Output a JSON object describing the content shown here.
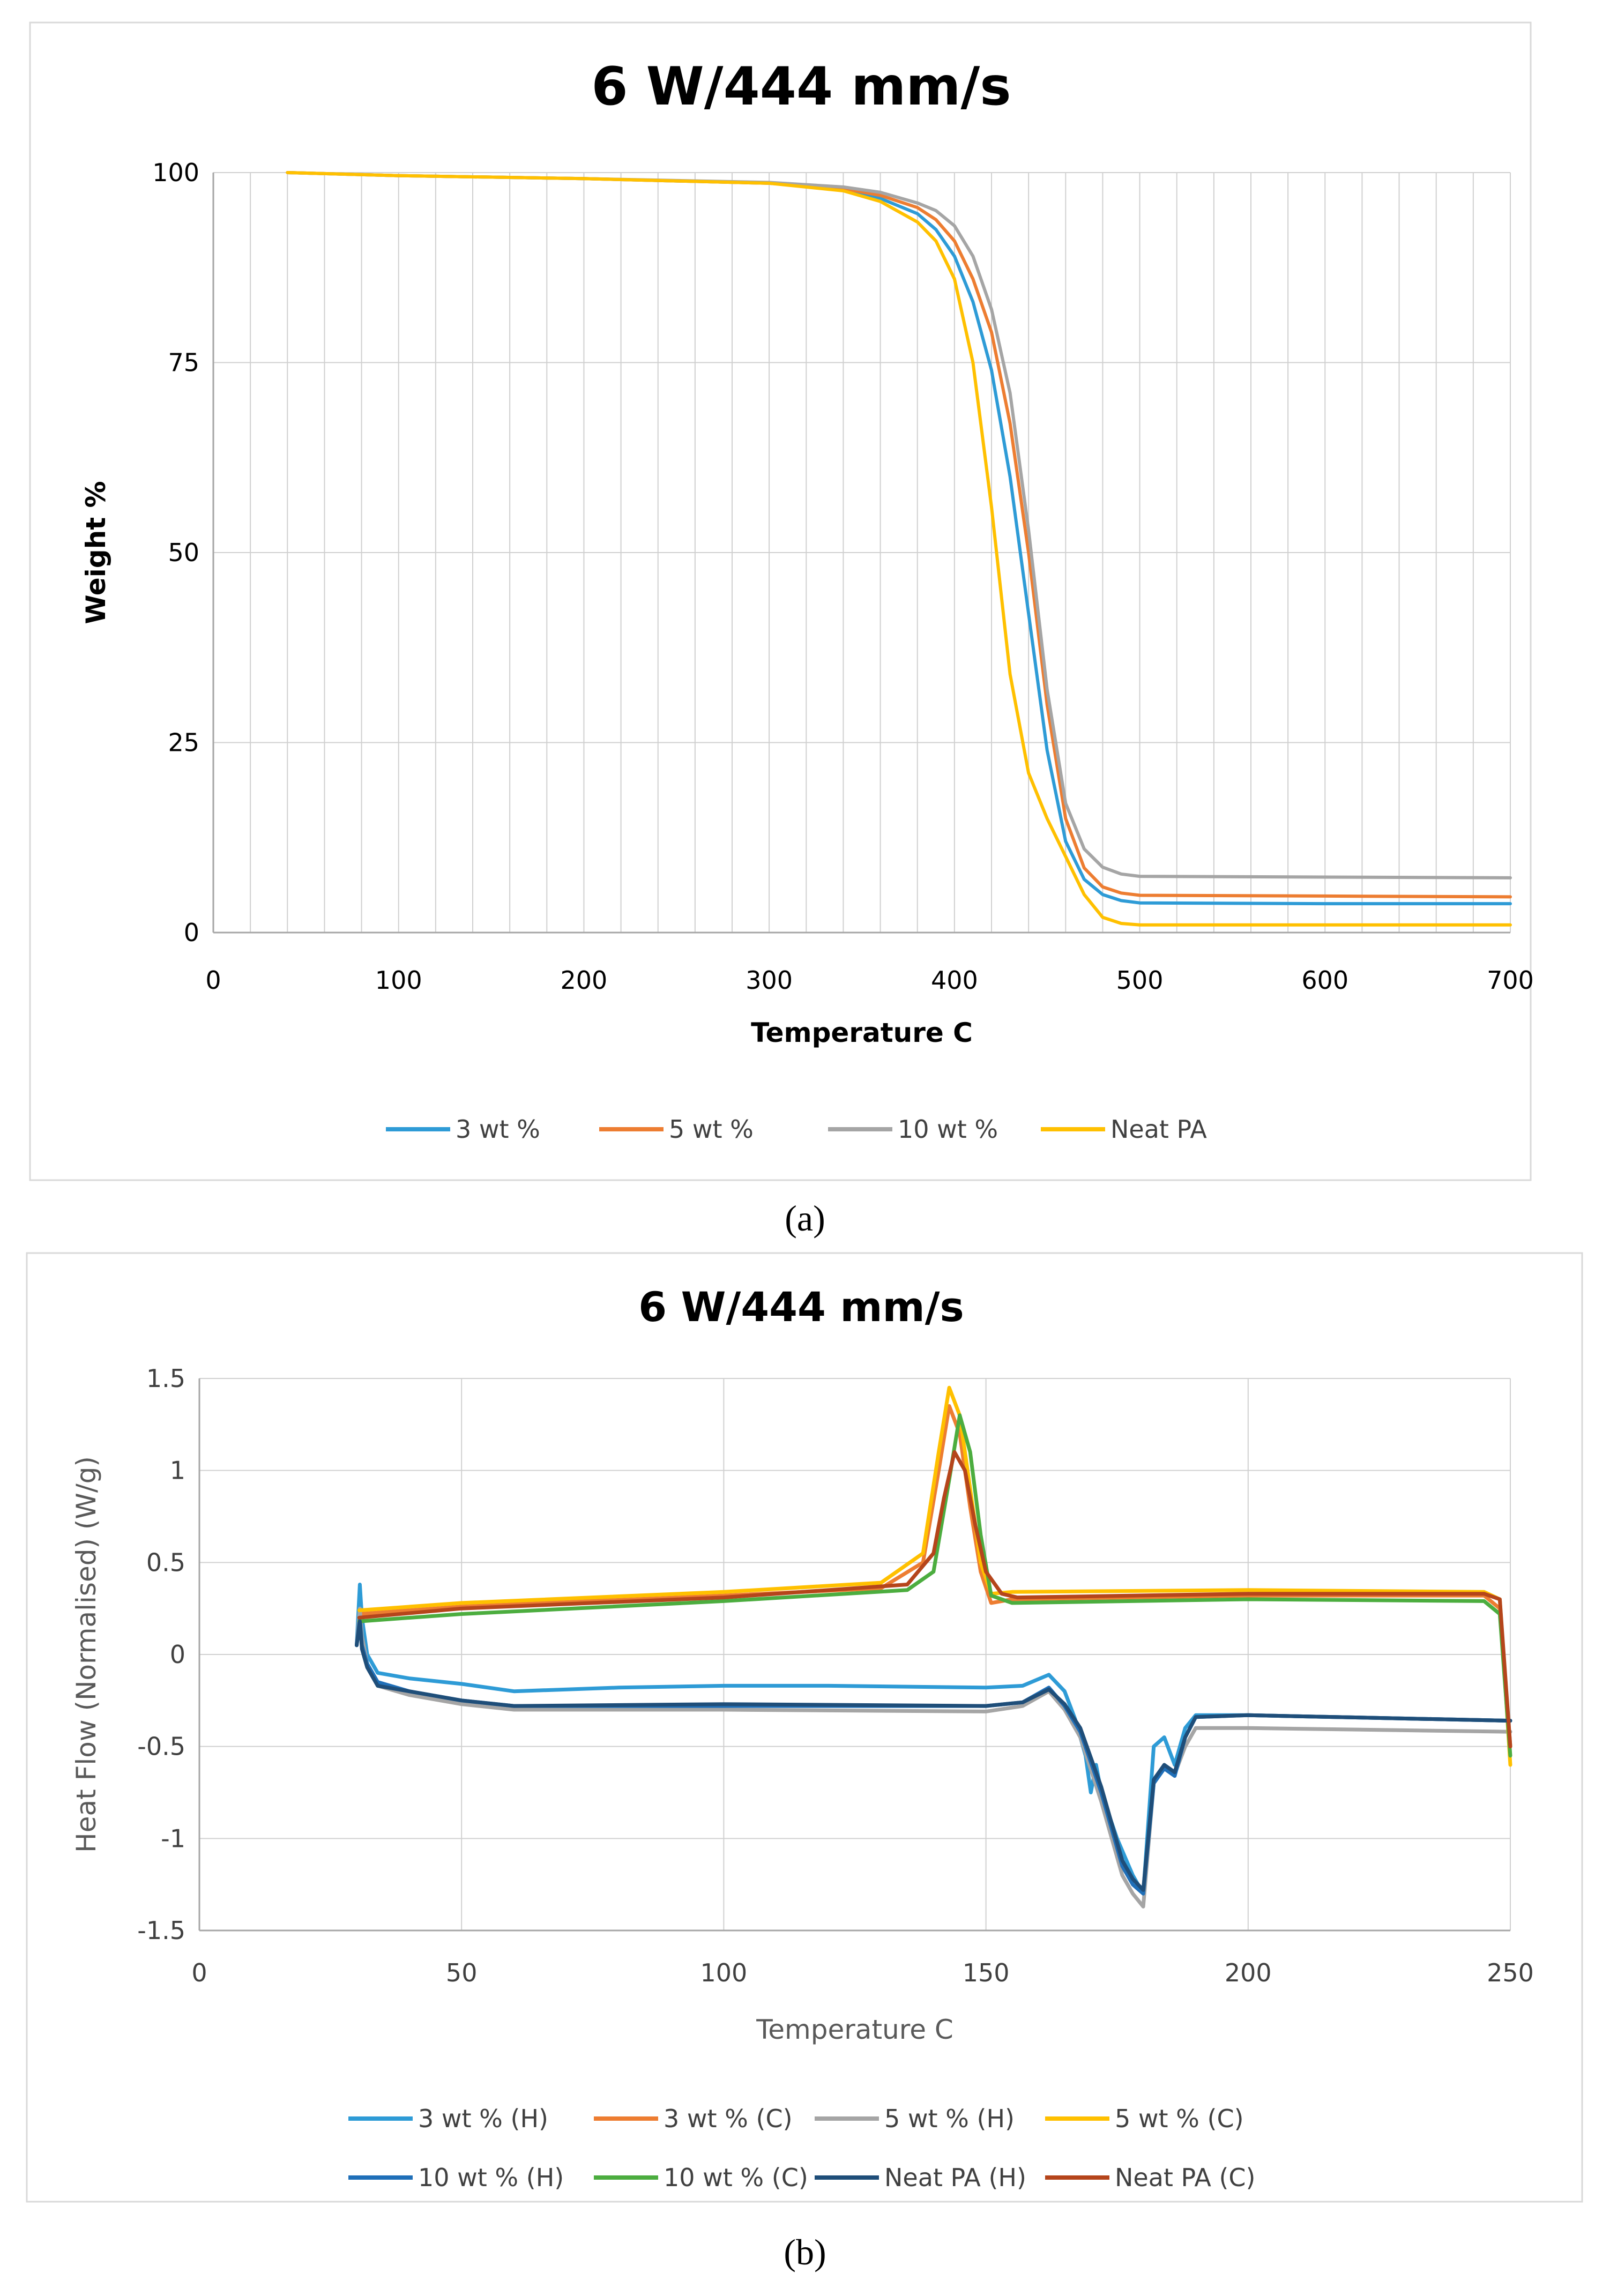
{
  "chart_data": [
    {
      "type": "line",
      "title": "6 W/444 mm/s",
      "xlabel": "Temperature C",
      "ylabel": "Weight %",
      "xlim": [
        0,
        700
      ],
      "ylim": [
        0,
        100
      ],
      "xticks": [
        "0",
        "100",
        "200",
        "300",
        "400",
        "500",
        "600",
        "700"
      ],
      "yticks": [
        "0",
        "25",
        "50",
        "75",
        "100"
      ],
      "grid": true,
      "legend_position": "bottom",
      "caption": "(a)",
      "series": [
        {
          "name": "3 wt %",
          "color": "#2e9bd6",
          "x": [
            40,
            100,
            200,
            300,
            340,
            360,
            380,
            390,
            400,
            410,
            420,
            430,
            440,
            450,
            460,
            470,
            480,
            490,
            500,
            600,
            700
          ],
          "y": [
            100,
            99.6,
            99.2,
            98.6,
            97.8,
            96.6,
            94.6,
            92.5,
            89,
            83,
            74,
            60,
            42,
            24,
            12,
            7,
            5,
            4.2,
            3.9,
            3.8,
            3.8
          ]
        },
        {
          "name": "5 wt %",
          "color": "#ed7d31",
          "x": [
            40,
            100,
            200,
            300,
            340,
            360,
            380,
            390,
            400,
            410,
            420,
            430,
            440,
            450,
            460,
            470,
            480,
            490,
            500,
            600,
            700
          ],
          "y": [
            100,
            99.6,
            99.2,
            98.6,
            97.9,
            97,
            95.4,
            93.8,
            91,
            86,
            79,
            67,
            50,
            30,
            15,
            8.5,
            6,
            5.2,
            4.9,
            4.8,
            4.7
          ]
        },
        {
          "name": "10 wt %",
          "color": "#a5a5a5",
          "x": [
            40,
            100,
            200,
            300,
            340,
            360,
            380,
            390,
            400,
            410,
            420,
            430,
            440,
            450,
            460,
            470,
            480,
            490,
            500,
            600,
            700
          ],
          "y": [
            100,
            99.6,
            99.2,
            98.7,
            98.1,
            97.4,
            96,
            95,
            93,
            89,
            82,
            71,
            53,
            32,
            17,
            11,
            8.6,
            7.7,
            7.4,
            7.3,
            7.2
          ]
        },
        {
          "name": "Neat PA",
          "color": "#ffc000",
          "x": [
            40,
            100,
            200,
            300,
            340,
            360,
            380,
            390,
            400,
            410,
            420,
            425,
            430,
            440,
            450,
            460,
            470,
            480,
            490,
            500,
            600,
            700
          ],
          "y": [
            100,
            99.6,
            99.2,
            98.6,
            97.6,
            96.2,
            93.5,
            91,
            86,
            75,
            56,
            45,
            34,
            21,
            15,
            10,
            5,
            2,
            1.2,
            1,
            1,
            1
          ]
        }
      ]
    },
    {
      "type": "line",
      "title": "6 W/444 mm/s",
      "xlabel": "Temperature C",
      "ylabel": "Heat Flow (Normalised) (W/g)",
      "xlim": [
        0,
        250
      ],
      "ylim": [
        -1.5,
        1.5
      ],
      "xticks": [
        "0",
        "50",
        "100",
        "150",
        "200",
        "250"
      ],
      "yticks": [
        "-1.5",
        "-1",
        "-0.5",
        "0",
        "0.5",
        "1",
        "1.5"
      ],
      "grid": true,
      "legend_position": "bottom",
      "caption": "(b)",
      "series": [
        {
          "name": "3 wt % (H)",
          "color": "#2e9bd6",
          "x": [
            30,
            30.6,
            31,
            32,
            34,
            40,
            50,
            60,
            80,
            100,
            120,
            150,
            157,
            162,
            165,
            167,
            169,
            170,
            171,
            172,
            175,
            178,
            180,
            182,
            184,
            186,
            188,
            190,
            200,
            250
          ],
          "y": [
            0.05,
            0.38,
            0.2,
            0.0,
            -0.1,
            -0.13,
            -0.16,
            -0.2,
            -0.18,
            -0.17,
            -0.17,
            -0.18,
            -0.17,
            -0.11,
            -0.2,
            -0.35,
            -0.55,
            -0.75,
            -0.6,
            -0.75,
            -1.0,
            -1.2,
            -1.3,
            -0.5,
            -0.45,
            -0.6,
            -0.4,
            -0.33,
            -0.33,
            -0.36
          ]
        },
        {
          "name": "3 wt % (C)",
          "color": "#ed7d31",
          "x": [
            30.5,
            50,
            100,
            130,
            138,
            141,
            143,
            145,
            147,
            149,
            151,
            155,
            200,
            245,
            248,
            250
          ],
          "y": [
            0.22,
            0.26,
            0.32,
            0.36,
            0.5,
            1.0,
            1.35,
            1.2,
            0.8,
            0.45,
            0.28,
            0.3,
            0.32,
            0.32,
            0.25,
            -0.5
          ]
        },
        {
          "name": "5 wt % (H)",
          "color": "#a5a5a5",
          "x": [
            30,
            30.6,
            31,
            32,
            34,
            40,
            50,
            60,
            100,
            150,
            157,
            162,
            165,
            168,
            172,
            176,
            178,
            180,
            182,
            184,
            186,
            188,
            190,
            200,
            250
          ],
          "y": [
            0.05,
            0.25,
            0.1,
            -0.05,
            -0.17,
            -0.22,
            -0.27,
            -0.3,
            -0.3,
            -0.31,
            -0.28,
            -0.2,
            -0.3,
            -0.45,
            -0.8,
            -1.2,
            -1.3,
            -1.37,
            -0.7,
            -0.6,
            -0.65,
            -0.5,
            -0.4,
            -0.4,
            -0.42
          ]
        },
        {
          "name": "5 wt % (C)",
          "color": "#ffc000",
          "x": [
            30.5,
            50,
            100,
            130,
            138,
            141,
            143,
            145,
            147,
            149,
            151,
            155,
            200,
            245,
            248,
            250
          ],
          "y": [
            0.24,
            0.28,
            0.34,
            0.39,
            0.55,
            1.1,
            1.45,
            1.3,
            0.9,
            0.5,
            0.33,
            0.34,
            0.35,
            0.34,
            0.3,
            -0.6
          ]
        },
        {
          "name": "10 wt % (H)",
          "color": "#1f6fb8",
          "x": [
            30,
            30.6,
            31,
            32,
            34,
            40,
            50,
            60,
            100,
            150,
            157,
            162,
            165,
            168,
            172,
            176,
            178,
            180,
            182,
            184,
            186,
            188,
            190,
            200,
            250
          ],
          "y": [
            0.05,
            0.2,
            0.05,
            -0.05,
            -0.15,
            -0.2,
            -0.25,
            -0.28,
            -0.28,
            -0.28,
            -0.26,
            -0.18,
            -0.28,
            -0.42,
            -0.75,
            -1.15,
            -1.25,
            -1.3,
            -0.7,
            -0.62,
            -0.66,
            -0.45,
            -0.34,
            -0.33,
            -0.36
          ]
        },
        {
          "name": "10 wt % (C)",
          "color": "#4cad3f",
          "x": [
            30.5,
            50,
            100,
            135,
            140,
            143,
            145,
            147,
            149,
            151,
            155,
            200,
            245,
            248,
            250
          ],
          "y": [
            0.18,
            0.22,
            0.29,
            0.35,
            0.45,
            0.95,
            1.3,
            1.1,
            0.65,
            0.32,
            0.28,
            0.3,
            0.29,
            0.22,
            -0.55
          ]
        },
        {
          "name": "Neat PA (H)",
          "color": "#1f4e79",
          "x": [
            30,
            30.6,
            31,
            32,
            34,
            40,
            50,
            60,
            100,
            150,
            157,
            162,
            165,
            168,
            172,
            176,
            178,
            180,
            182,
            184,
            186,
            188,
            190,
            200,
            250
          ],
          "y": [
            0.05,
            0.18,
            0.03,
            -0.07,
            -0.17,
            -0.2,
            -0.25,
            -0.28,
            -0.27,
            -0.28,
            -0.26,
            -0.19,
            -0.27,
            -0.4,
            -0.72,
            -1.12,
            -1.22,
            -1.28,
            -0.68,
            -0.6,
            -0.64,
            -0.45,
            -0.34,
            -0.33,
            -0.36
          ]
        },
        {
          "name": "Neat PA (C)",
          "color": "#b5451b",
          "x": [
            30.5,
            50,
            100,
            135,
            140,
            142,
            144,
            146,
            148,
            150,
            153,
            156,
            200,
            245,
            248,
            250
          ],
          "y": [
            0.2,
            0.25,
            0.31,
            0.38,
            0.55,
            0.85,
            1.1,
            1.0,
            0.7,
            0.45,
            0.33,
            0.31,
            0.33,
            0.33,
            0.3,
            -0.5
          ]
        }
      ]
    }
  ]
}
